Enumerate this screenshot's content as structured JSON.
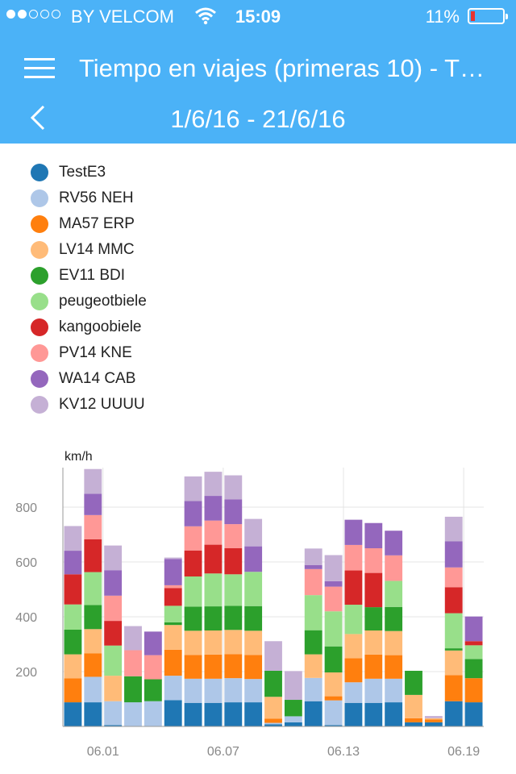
{
  "status_bar": {
    "carrier": "BY VELCOM",
    "time": "15:09",
    "battery": "11%",
    "battery_level": 0.11,
    "signal_bars": 2
  },
  "nav": {
    "title": "Tiempo en viajes (primeras 10) - T…",
    "date_range": "1/6/16 - 21/6/16",
    "menu_icon": "hamburger-menu-icon",
    "back_icon": "chevron-left-icon"
  },
  "legend": [
    {
      "name": "TestE3",
      "color": "#1f77b4"
    },
    {
      "name": "RV56 NEH",
      "color": "#aec7e8"
    },
    {
      "name": "MA57 ERP",
      "color": "#ff7f0e"
    },
    {
      "name": "LV14 MMC",
      "color": "#ffbb78"
    },
    {
      "name": "EV11 BDI",
      "color": "#2ca02c"
    },
    {
      "name": "peugeotbiele",
      "color": "#98df8a"
    },
    {
      "name": "kangoobiele",
      "color": "#d62728"
    },
    {
      "name": "PV14 KNE",
      "color": "#ff9896"
    },
    {
      "name": "WA14 CAB",
      "color": "#9467bd"
    },
    {
      "name": "KV12 UUUU",
      "color": "#c5b0d5"
    }
  ],
  "chart_data": {
    "type": "bar",
    "stacked": true,
    "ylabel": "km/h",
    "ylim": [
      0,
      940
    ],
    "yticks": [
      200,
      400,
      600,
      800
    ],
    "xticks": [
      "06.01",
      "06.07",
      "06.13",
      "06.19"
    ],
    "xtick_index": [
      3,
      9,
      15,
      21
    ],
    "grid": true,
    "series": [
      {
        "name": "TestE3",
        "values": [
          88,
          88,
          5,
          0,
          0,
          96,
          86,
          86,
          88,
          88,
          8,
          15,
          92,
          5,
          86,
          86,
          88,
          15,
          15,
          92,
          88
        ]
      },
      {
        "name": "RV56 NEH",
        "values": [
          0,
          93,
          87,
          88,
          92,
          89,
          88,
          88,
          88,
          85,
          5,
          22,
          85,
          90,
          75,
          88,
          86,
          0,
          0,
          0,
          0
        ]
      },
      {
        "name": "MA57 ERP",
        "values": [
          87,
          86,
          0,
          0,
          0,
          95,
          87,
          88,
          88,
          88,
          15,
          0,
          0,
          15,
          88,
          88,
          86,
          15,
          10,
          95,
          88
        ]
      },
      {
        "name": "LV14 MMC",
        "values": [
          88,
          88,
          93,
          0,
          0,
          90,
          88,
          88,
          88,
          88,
          80,
          0,
          86,
          87,
          88,
          88,
          88,
          85,
          5,
          90,
          0
        ]
      },
      {
        "name": "EV11 BDI",
        "values": [
          90,
          88,
          0,
          95,
          80,
          10,
          88,
          88,
          88,
          90,
          95,
          60,
          88,
          95,
          0,
          85,
          88,
          88,
          0,
          8,
          70
        ]
      },
      {
        "name": "peugeotbiele",
        "values": [
          92,
          120,
          110,
          0,
          0,
          60,
          110,
          120,
          115,
          125,
          0,
          0,
          128,
          128,
          107,
          0,
          95,
          0,
          0,
          128,
          50
        ]
      },
      {
        "name": "kangoobiele",
        "values": [
          110,
          120,
          90,
          0,
          0,
          65,
          95,
          105,
          95,
          0,
          0,
          0,
          0,
          0,
          125,
          125,
          0,
          0,
          0,
          95,
          15
        ]
      },
      {
        "name": "PV14 KNE",
        "values": [
          0,
          88,
          92,
          95,
          88,
          10,
          88,
          88,
          88,
          0,
          0,
          0,
          95,
          90,
          93,
          90,
          93,
          0,
          0,
          72,
          0
        ]
      },
      {
        "name": "WA14 CAB",
        "values": [
          86,
          78,
          93,
          0,
          86,
          96,
          92,
          90,
          90,
          93,
          0,
          0,
          15,
          20,
          92,
          92,
          90,
          0,
          0,
          95,
          90
        ]
      },
      {
        "name": "KV12 UUUU",
        "values": [
          90,
          90,
          90,
          88,
          0,
          5,
          90,
          88,
          88,
          100,
          108,
          105,
          60,
          95,
          0,
          0,
          0,
          0,
          8,
          90,
          0
        ]
      }
    ]
  }
}
